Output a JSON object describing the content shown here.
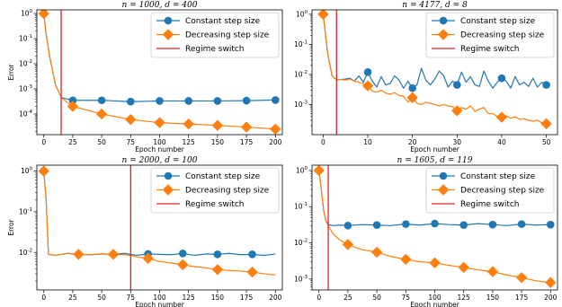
{
  "colors": {
    "constant": "#1f77b4",
    "decreasing": "#ff7f0e",
    "switch": "#d62728"
  },
  "chart_data": [
    {
      "type": "line",
      "title": "n = 1000, d = 400",
      "xlabel": "Epoch number",
      "ylabel": "Error",
      "yscale": "log",
      "xlim": [
        -6,
        206
      ],
      "ylim": [
        1.5e-05,
        1.4
      ],
      "xticks": [
        "0",
        "25",
        "50",
        "75",
        "100",
        "125",
        "150",
        "175",
        "200"
      ],
      "yticks": [
        "10^0",
        "10^-1",
        "10^-2",
        "10^-3",
        "10^-4"
      ],
      "switch_x": 15,
      "grid": false,
      "legend": {
        "placement": "top-right",
        "entries": [
          "Constant step size",
          "Decreasing step size",
          "Regime switch"
        ]
      },
      "series": [
        {
          "name": "Constant step size",
          "x": [
            0,
            2,
            5,
            10,
            15,
            25,
            50,
            75,
            100,
            125,
            150,
            175,
            200
          ],
          "y": [
            1.0,
            0.15,
            0.02,
            0.0015,
            0.00045,
            0.00035,
            0.00035,
            0.00031,
            0.00033,
            0.00033,
            0.00033,
            0.00034,
            0.00036
          ],
          "markers_x": [
            0,
            25,
            50,
            75,
            100,
            125,
            150,
            175,
            200
          ]
        },
        {
          "name": "Decreasing step size",
          "x": [
            0,
            2,
            5,
            10,
            15,
            25,
            50,
            75,
            100,
            125,
            150,
            175,
            200
          ],
          "y": [
            1.0,
            0.15,
            0.02,
            0.0015,
            0.00045,
            0.0002,
            0.0001,
            6e-05,
            4.5e-05,
            4e-05,
            3.5e-05,
            3e-05,
            2.5e-05
          ],
          "markers_x": [
            0,
            25,
            50,
            75,
            100,
            125,
            150,
            175,
            200
          ]
        }
      ]
    },
    {
      "type": "line",
      "title": "n = 4177, d = 8",
      "xlabel": "Epoch number",
      "ylabel": "",
      "yscale": "log",
      "xlim": [
        -2.5,
        52.5
      ],
      "ylim": [
        0.0001,
        1.4
      ],
      "xticks": [
        "0",
        "10",
        "20",
        "30",
        "40",
        "50"
      ],
      "yticks": [
        "10^0",
        "10^-1",
        "10^-2",
        "10^-3"
      ],
      "switch_x": 3,
      "grid": false,
      "legend": {
        "placement": "top-right",
        "entries": [
          "Constant step size",
          "Decreasing step size",
          "Regime switch"
        ]
      },
      "series": [
        {
          "name": "Constant step size",
          "x": [
            0,
            1,
            2,
            3,
            4,
            5,
            6,
            7,
            8,
            9,
            10,
            11,
            12,
            13,
            14,
            15,
            16,
            17,
            18,
            19,
            20,
            21,
            22,
            23,
            24,
            25,
            26,
            27,
            28,
            29,
            30,
            31,
            32,
            33,
            34,
            35,
            36,
            37,
            38,
            39,
            40,
            41,
            42,
            43,
            44,
            45,
            46,
            47,
            48,
            49,
            50
          ],
          "y": [
            1.0,
            0.05,
            0.009,
            0.0065,
            0.0068,
            0.007,
            0.0075,
            0.006,
            0.009,
            0.0055,
            0.012,
            0.006,
            0.0038,
            0.0085,
            0.0045,
            0.005,
            0.009,
            0.0065,
            0.0035,
            0.006,
            0.0035,
            0.0045,
            0.016,
            0.0065,
            0.0045,
            0.007,
            0.013,
            0.009,
            0.0038,
            0.006,
            0.0045,
            0.012,
            0.0055,
            0.0085,
            0.0045,
            0.004,
            0.013,
            0.006,
            0.0035,
            0.0055,
            0.0075,
            0.006,
            0.0035,
            0.0085,
            0.0045,
            0.0055,
            0.004,
            0.0075,
            0.0038,
            0.0055,
            0.0045
          ],
          "markers_x": [
            0,
            10,
            20,
            30,
            40,
            50
          ]
        },
        {
          "name": "Decreasing step size",
          "x": [
            0,
            1,
            2,
            3,
            4,
            5,
            6,
            7,
            8,
            9,
            10,
            11,
            12,
            13,
            14,
            15,
            16,
            17,
            18,
            19,
            20,
            21,
            22,
            23,
            24,
            25,
            26,
            27,
            28,
            29,
            30,
            31,
            32,
            33,
            34,
            35,
            36,
            37,
            38,
            39,
            40,
            41,
            42,
            43,
            44,
            45,
            46,
            47,
            48,
            49,
            50
          ],
          "y": [
            1.0,
            0.05,
            0.009,
            0.0065,
            0.0068,
            0.0065,
            0.007,
            0.006,
            0.0055,
            0.005,
            0.0042,
            0.0028,
            0.0026,
            0.003,
            0.0024,
            0.0022,
            0.0025,
            0.002,
            0.0019,
            0.0012,
            0.0017,
            0.0011,
            0.001,
            0.0012,
            0.0011,
            0.001,
            0.0009,
            0.001,
            0.0009,
            0.00085,
            0.00062,
            0.0008,
            0.0007,
            0.0009,
            0.0006,
            0.0007,
            0.0008,
            0.0005,
            0.0005,
            0.0004,
            0.00038,
            0.00042,
            0.00035,
            0.0004,
            0.00032,
            0.00034,
            0.0003,
            0.00028,
            0.0003,
            0.00025,
            0.00023
          ],
          "markers_x": [
            0,
            10,
            20,
            30,
            40,
            50
          ]
        }
      ]
    },
    {
      "type": "line",
      "title": "n = 2000, d = 100",
      "xlabel": "Epoch number",
      "ylabel": "Error",
      "yscale": "log",
      "xlim": [
        -6,
        206
      ],
      "ylim": [
        0.0012,
        1.4
      ],
      "xticks": [
        "0",
        "25",
        "50",
        "75",
        "100",
        "125",
        "150",
        "175",
        "200"
      ],
      "yticks": [
        "10^0",
        "10^-1",
        "10^-2"
      ],
      "switch_x": 75,
      "grid": false,
      "legend": {
        "placement": "top-right",
        "entries": [
          "Constant step size",
          "Decreasing step size",
          "Regime switch"
        ]
      },
      "series": [
        {
          "name": "Constant step size",
          "x": [
            0,
            2,
            4,
            10,
            20,
            30,
            40,
            50,
            60,
            70,
            80,
            90,
            100,
            110,
            120,
            130,
            140,
            150,
            160,
            170,
            180,
            190,
            200
          ],
          "y": [
            1.0,
            0.2,
            0.009,
            0.0085,
            0.0095,
            0.009,
            0.0088,
            0.0092,
            0.009,
            0.0095,
            0.0085,
            0.0092,
            0.009,
            0.0088,
            0.0095,
            0.0085,
            0.0092,
            0.009,
            0.0095,
            0.0088,
            0.009,
            0.0085,
            0.0092
          ],
          "markers_x": [
            0,
            30,
            60,
            90,
            120,
            150,
            180
          ]
        },
        {
          "name": "Decreasing step size",
          "x": [
            0,
            2,
            4,
            10,
            20,
            30,
            40,
            50,
            60,
            70,
            75,
            80,
            90,
            100,
            110,
            120,
            130,
            140,
            150,
            160,
            170,
            180,
            190,
            200
          ],
          "y": [
            1.0,
            0.2,
            0.009,
            0.0085,
            0.0095,
            0.009,
            0.0088,
            0.0092,
            0.009,
            0.0088,
            0.0085,
            0.0078,
            0.0072,
            0.006,
            0.0055,
            0.005,
            0.0045,
            0.0042,
            0.0038,
            0.0036,
            0.0035,
            0.0033,
            0.003,
            0.0028
          ],
          "markers_x": [
            0,
            30,
            60,
            90,
            120,
            150,
            180
          ]
        }
      ]
    },
    {
      "type": "line",
      "title": "n = 1605, d = 119",
      "xlabel": "Epoch number",
      "ylabel": "",
      "yscale": "log",
      "xlim": [
        -6,
        206
      ],
      "ylim": [
        0.0005,
        1.4
      ],
      "xticks": [
        "0",
        "25",
        "50",
        "75",
        "100",
        "125",
        "150",
        "175",
        "200"
      ],
      "yticks": [
        "10^0",
        "10^-1",
        "10^-2",
        "10^-3"
      ],
      "switch_x": 8,
      "grid": false,
      "legend": {
        "placement": "top-right",
        "entries": [
          "Constant step size",
          "Decreasing step size",
          "Regime switch"
        ]
      },
      "series": [
        {
          "name": "Constant step size",
          "x": [
            0,
            2,
            4,
            6,
            8,
            12,
            18,
            25,
            37,
            50,
            62,
            75,
            87,
            100,
            112,
            125,
            137,
            150,
            162,
            175,
            187,
            200
          ],
          "y": [
            1.0,
            0.3,
            0.08,
            0.04,
            0.032,
            0.03,
            0.031,
            0.03,
            0.032,
            0.031,
            0.03,
            0.033,
            0.031,
            0.034,
            0.032,
            0.031,
            0.034,
            0.032,
            0.03,
            0.033,
            0.031,
            0.032
          ],
          "markers_x": [
            0,
            25,
            50,
            75,
            100,
            125,
            150,
            175,
            200
          ]
        },
        {
          "name": "Decreasing step size",
          "x": [
            0,
            2,
            4,
            6,
            8,
            12,
            18,
            25,
            37,
            50,
            62,
            75,
            87,
            100,
            112,
            125,
            137,
            150,
            162,
            175,
            187,
            200
          ],
          "y": [
            1.0,
            0.3,
            0.08,
            0.04,
            0.03,
            0.018,
            0.012,
            0.009,
            0.0065,
            0.0055,
            0.0042,
            0.0035,
            0.003,
            0.0028,
            0.0024,
            0.0021,
            0.0018,
            0.0016,
            0.0013,
            0.0011,
            0.0009,
            0.0008
          ],
          "markers_x": [
            0,
            25,
            50,
            75,
            100,
            125,
            150,
            175,
            200
          ]
        }
      ]
    }
  ]
}
